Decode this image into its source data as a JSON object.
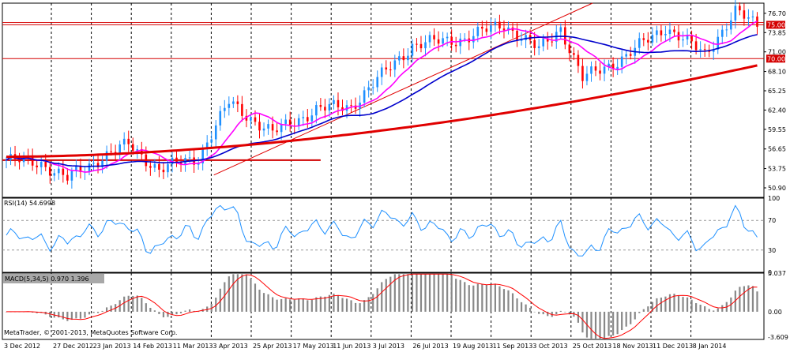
{
  "chart_data": [
    {
      "type": "candlestick",
      "title": "",
      "ylim": [
        49.5,
        78.2
      ],
      "y_ticks": [
        "76.70",
        "73.85",
        "71.00",
        "68.10",
        "65.25",
        "62.40",
        "59.55",
        "56.65",
        "53.75",
        "50.90"
      ],
      "x_labels": [
        "3 Dec 2012",
        "27 Dec 2012",
        "23 Jan 2013",
        "14 Feb 2013",
        "11 Mar 2013",
        "3 Apr 2013",
        "25 Apr 2013",
        "17 May 2013",
        "11 Jun 2013",
        "3 Jul 2013",
        "26 Jul 2013",
        "19 Aug 2013",
        "11 Sep 2013",
        "3 Oct 2013",
        "25 Oct 2013",
        "18 Nov 2013",
        "11 Dec 2013",
        "8 Jan 2014"
      ],
      "price_levels": [
        {
          "label": "75.00",
          "value": 75.0,
          "color": "#d40000"
        },
        {
          "label": "70.00",
          "value": 70.0,
          "color": "#d40000"
        }
      ],
      "close_series": [
        {
          "start": 55.0,
          "end": 54.6,
          "n": 8
        },
        {
          "start": 54.6,
          "end": 52.2,
          "n": 6
        },
        {
          "start": 52.2,
          "end": 55.5,
          "n": 8
        },
        {
          "start": 55.5,
          "end": 57.3,
          "n": 6
        },
        {
          "start": 57.3,
          "end": 53.6,
          "n": 7
        },
        {
          "start": 53.6,
          "end": 55.4,
          "n": 9
        },
        {
          "start": 55.4,
          "end": 63.5,
          "n": 7
        },
        {
          "start": 63.5,
          "end": 59.0,
          "n": 10
        },
        {
          "start": 59.0,
          "end": 62.5,
          "n": 10
        },
        {
          "start": 62.5,
          "end": 63.0,
          "n": 8
        },
        {
          "start": 63.0,
          "end": 72.0,
          "n": 14
        },
        {
          "start": 72.0,
          "end": 73.0,
          "n": 12
        },
        {
          "start": 73.0,
          "end": 75.1,
          "n": 9
        },
        {
          "start": 75.1,
          "end": 71.3,
          "n": 8
        },
        {
          "start": 71.3,
          "end": 74.6,
          "n": 5
        },
        {
          "start": 74.6,
          "end": 67.0,
          "n": 5
        },
        {
          "start": 67.0,
          "end": 70.4,
          "n": 10
        },
        {
          "start": 70.4,
          "end": 74.7,
          "n": 9
        },
        {
          "start": 74.7,
          "end": 70.6,
          "n": 9
        },
        {
          "start": 70.6,
          "end": 76.9,
          "n": 7
        },
        {
          "start": 76.9,
          "end": 74.5,
          "n": 6
        }
      ],
      "moving_averages": [
        {
          "period": 10,
          "color": "#ff00ff"
        },
        {
          "period": 30,
          "color": "#0000cc"
        },
        {
          "period": 200,
          "color": "#e00000",
          "seed": 55.5
        }
      ],
      "trendline": {
        "from": [
          52.8,
          180
        ],
        "to": [
          78.2,
          420
        ],
        "color": "#e00000"
      },
      "support_line": {
        "value": 55.0,
        "until": 72,
        "color": "#d00000"
      }
    },
    {
      "type": "line",
      "title": "RSI(14) 54.6998",
      "ylim": [
        0,
        100
      ],
      "y_ticks": [
        "100",
        "70",
        "30",
        "0"
      ],
      "levels": [
        70,
        30
      ],
      "series_color": "#1e90ff"
    },
    {
      "type": "bar",
      "title": "MACD(5,34,5) 0.970 1.396",
      "ylim": [
        -3.609,
        5.037
      ],
      "y_ticks": [
        "5.037",
        "0.00",
        "-3.609"
      ],
      "bar_color": "#888888",
      "signal_color": "#ff0000"
    }
  ],
  "footer": {
    "copyright": "MetaTrader, © 2001-2013, MetaQuotes Software Corp."
  },
  "theme": {
    "up_candle": "#1e90ff",
    "down_candle": "#ff0000",
    "grid": "#000000",
    "frame": "#000000"
  }
}
